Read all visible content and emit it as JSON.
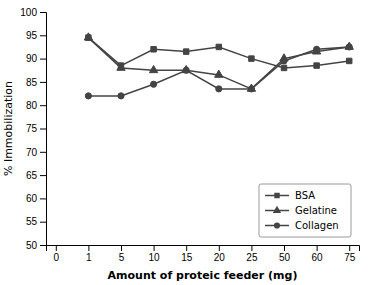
{
  "chart_data": {
    "type": "line",
    "categories": [
      "0",
      "1",
      "5",
      "10",
      "15",
      "20",
      "25",
      "50",
      "60",
      "75"
    ],
    "series": [
      {
        "name": "BSA",
        "color": "#444444",
        "marker": "square",
        "values": [
          null,
          94.5,
          88.5,
          92.0,
          91.5,
          92.5,
          90.0,
          88.0,
          88.5,
          89.5
        ]
      },
      {
        "name": "Gelatine",
        "color": "#444444",
        "marker": "triangle",
        "values": [
          null,
          94.5,
          88.0,
          87.5,
          87.5,
          86.5,
          83.5,
          90.0,
          91.5,
          92.5
        ]
      },
      {
        "name": "Collagen",
        "color": "#444444",
        "marker": "circle",
        "values": [
          null,
          82.0,
          82.0,
          84.5,
          87.5,
          83.5,
          83.5,
          89.5,
          92.0,
          92.5
        ]
      }
    ],
    "x_label": "Amount of proteic feeder (mg)",
    "y_label": "% Immobilization",
    "ylim": [
      50,
      100
    ],
    "yticks": [
      50,
      55,
      60,
      65,
      70,
      75,
      80,
      85,
      90,
      95,
      100
    ],
    "legend": "lower right"
  }
}
